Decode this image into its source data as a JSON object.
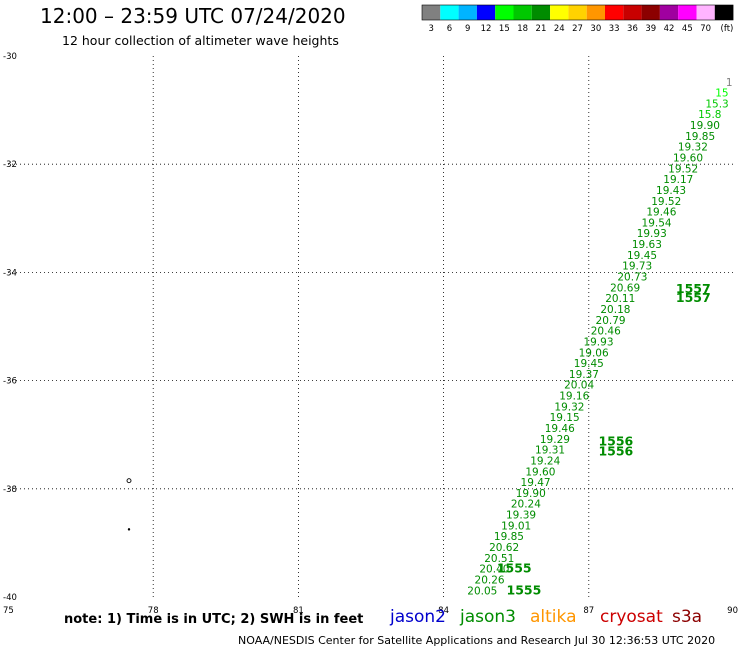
{
  "header": {
    "title": "12:00 – 23:59 UTC 07/24/2020",
    "subtitle": "12 hour collection of altimeter wave heights"
  },
  "legend": {
    "unit_label": "(ft)",
    "bins": [
      {
        "label": "3",
        "color": "#808080"
      },
      {
        "label": "6",
        "color": "#00ffff"
      },
      {
        "label": "9",
        "color": "#00b4ff"
      },
      {
        "label": "12",
        "color": "#0000ff"
      },
      {
        "label": "15",
        "color": "#00ff00"
      },
      {
        "label": "18",
        "color": "#00c800"
      },
      {
        "label": "21",
        "color": "#008c00"
      },
      {
        "label": "24",
        "color": "#ffff00"
      },
      {
        "label": "27",
        "color": "#ffd200"
      },
      {
        "label": "30",
        "color": "#ff9600"
      },
      {
        "label": "33",
        "color": "#ff0000"
      },
      {
        "label": "36",
        "color": "#c80000"
      },
      {
        "label": "39",
        "color": "#8c0000"
      },
      {
        "label": "42",
        "color": "#a000a0"
      },
      {
        "label": "45",
        "color": "#ff00ff"
      },
      {
        "label": "70",
        "color": "#ffb4ff"
      },
      {
        "label": "",
        "color": "#000000"
      }
    ]
  },
  "footer": {
    "note": "note:  1) Time is in UTC;  2) SWH is in feet",
    "credit": "NOAA/NESDIS Center for Satellite Applications and Research    Jul 30 12:36:53 UTC 2020",
    "satellites": [
      {
        "name": "jason2",
        "color": "#0000cc"
      },
      {
        "name": "jason3",
        "color": "#008c00"
      },
      {
        "name": "altika",
        "color": "#ff9600"
      },
      {
        "name": "cryosat",
        "color": "#cc0000"
      },
      {
        "name": "s3a",
        "color": "#8c0000"
      }
    ]
  },
  "chart_data": {
    "type": "scatter",
    "x_ticks": [
      "75",
      "78",
      "81",
      "84",
      "87",
      "90"
    ],
    "y_ticks": [
      "-30",
      "-32",
      "-34",
      "-36",
      "-38",
      "-40"
    ],
    "xlim": [
      75,
      90
    ],
    "ylim": [
      -40,
      -30
    ],
    "grid": true,
    "unit": "ft",
    "tracks": [
      {
        "satellite": "jason3",
        "color_note": "colored by SWH bin",
        "pass_labels": [
          {
            "text": "1555",
            "lon": 85.1,
            "lat": -39.55
          },
          {
            "text": "1555",
            "lon": 85.3,
            "lat": -39.95
          },
          {
            "text": "1556",
            "lon": 87.2,
            "lat": -37.2
          },
          {
            "text": "1556",
            "lon": 87.2,
            "lat": -37.38
          },
          {
            "text": "1557",
            "lon": 88.8,
            "lat": -34.38
          },
          {
            "text": "1557",
            "lon": 88.8,
            "lat": -34.55
          }
        ],
        "points": [
          {
            "lon": 84.8,
            "lat": -39.95,
            "swh": "20.05"
          },
          {
            "lon": 84.95,
            "lat": -39.75,
            "swh": "20.26"
          },
          {
            "lon": 85.05,
            "lat": -39.55,
            "swh": "20.40"
          },
          {
            "lon": 85.15,
            "lat": -39.35,
            "swh": "20.51"
          },
          {
            "lon": 85.25,
            "lat": -39.15,
            "swh": "20.62"
          },
          {
            "lon": 85.35,
            "lat": -38.95,
            "swh": "19.85"
          },
          {
            "lon": 85.5,
            "lat": -38.75,
            "swh": "19.01"
          },
          {
            "lon": 85.6,
            "lat": -38.55,
            "swh": "19.39"
          },
          {
            "lon": 85.7,
            "lat": -38.35,
            "swh": "20.24"
          },
          {
            "lon": 85.8,
            "lat": -38.15,
            "swh": "19.90"
          },
          {
            "lon": 85.9,
            "lat": -37.95,
            "swh": "19.47"
          },
          {
            "lon": 86.0,
            "lat": -37.75,
            "swh": "19.60"
          },
          {
            "lon": 86.1,
            "lat": -37.55,
            "swh": "19.24"
          },
          {
            "lon": 86.2,
            "lat": -37.35,
            "swh": "19.31"
          },
          {
            "lon": 86.3,
            "lat": -37.15,
            "swh": "19.29"
          },
          {
            "lon": 86.4,
            "lat": -36.95,
            "swh": "19.46"
          },
          {
            "lon": 86.5,
            "lat": -36.75,
            "swh": "19.15"
          },
          {
            "lon": 86.6,
            "lat": -36.55,
            "swh": "19.32"
          },
          {
            "lon": 86.7,
            "lat": -36.35,
            "swh": "19.16"
          },
          {
            "lon": 86.8,
            "lat": -36.15,
            "swh": "20.04"
          },
          {
            "lon": 86.9,
            "lat": -35.95,
            "swh": "19.37"
          },
          {
            "lon": 87.0,
            "lat": -35.75,
            "swh": "19.45"
          },
          {
            "lon": 87.1,
            "lat": -35.55,
            "swh": "19.06"
          },
          {
            "lon": 87.2,
            "lat": -35.35,
            "swh": "19.93"
          },
          {
            "lon": 87.35,
            "lat": -35.15,
            "swh": "20.46"
          },
          {
            "lon": 87.45,
            "lat": -34.95,
            "swh": "20.79"
          },
          {
            "lon": 87.55,
            "lat": -34.75,
            "swh": "20.18"
          },
          {
            "lon": 87.65,
            "lat": -34.55,
            "swh": "20.11"
          },
          {
            "lon": 87.75,
            "lat": -34.35,
            "swh": "20.69"
          },
          {
            "lon": 87.9,
            "lat": -34.15,
            "swh": "20.73"
          },
          {
            "lon": 88.0,
            "lat": -33.95,
            "swh": "19.73"
          },
          {
            "lon": 88.1,
            "lat": -33.75,
            "swh": "19.45"
          },
          {
            "lon": 88.2,
            "lat": -33.55,
            "swh": "19.63"
          },
          {
            "lon": 88.3,
            "lat": -33.35,
            "swh": "19.93"
          },
          {
            "lon": 88.4,
            "lat": -33.15,
            "swh": "19.54"
          },
          {
            "lon": 88.5,
            "lat": -32.95,
            "swh": "19.46"
          },
          {
            "lon": 88.6,
            "lat": -32.75,
            "swh": "19.52"
          },
          {
            "lon": 88.7,
            "lat": -32.55,
            "swh": "19.43"
          },
          {
            "lon": 88.85,
            "lat": -32.35,
            "swh": "19.17"
          },
          {
            "lon": 88.95,
            "lat": -32.15,
            "swh": "19.52"
          },
          {
            "lon": 89.05,
            "lat": -31.95,
            "swh": "19.60"
          },
          {
            "lon": 89.15,
            "lat": -31.75,
            "swh": "19.32"
          },
          {
            "lon": 89.3,
            "lat": -31.55,
            "swh": "19.85"
          },
          {
            "lon": 89.4,
            "lat": -31.35,
            "swh": "19.90"
          },
          {
            "lon": 89.5,
            "lat": -31.15,
            "swh": "15.8"
          },
          {
            "lon": 89.65,
            "lat": -30.95,
            "swh": "15.3"
          },
          {
            "lon": 89.75,
            "lat": -30.75,
            "swh": "15"
          },
          {
            "lon": 89.9,
            "lat": -30.55,
            "swh": "1"
          }
        ]
      }
    ],
    "markers": [
      {
        "lon": 77.5,
        "lat": -37.85,
        "symbol": "o"
      },
      {
        "lon": 77.5,
        "lat": -38.75,
        "symbol": "."
      }
    ]
  }
}
